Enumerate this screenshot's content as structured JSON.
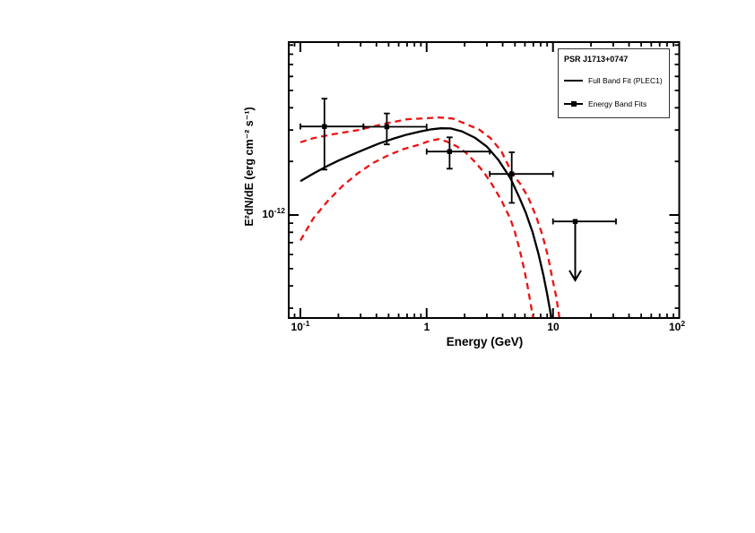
{
  "axes": {
    "x": {
      "title": "Energy (GeV)",
      "scale": "log",
      "unit": "GeV",
      "tick_labels": [
        {
          "base": "10",
          "exp": "-1"
        },
        {
          "base": "1",
          "exp": ""
        },
        {
          "base": "10",
          "exp": ""
        },
        {
          "base": "10",
          "exp": "2"
        }
      ]
    },
    "y": {
      "title": "E²dN/dE (erg cm⁻² s⁻¹)",
      "scale": "log",
      "unit": "erg cm⁻² s⁻¹",
      "tick_labels": [
        {
          "base": "10",
          "exp": "-12"
        }
      ]
    }
  },
  "legend": {
    "title": "PSR J1713+0747",
    "entries": [
      {
        "label": "Full Band Fit (PLEC1)",
        "symbol": "line"
      },
      {
        "label": "Energy Band Fits",
        "symbol": "square-on-line"
      }
    ]
  },
  "colors": {
    "fit_line": "#000000",
    "uncertainty_band": "#ee1111",
    "data_points": "#000000",
    "frame": "#000000"
  },
  "chart_data": {
    "type": "line",
    "source_name": "PSR J1713+0747",
    "xlabel": "Energy (GeV)",
    "ylabel": "E²dN/dE (erg cm⁻² s⁻¹)",
    "xscale": "log",
    "yscale": "log",
    "xlim": [
      0.0809,
      100
    ],
    "ylim": [
      2.64e-13,
      9.35e-12
    ],
    "grid": false,
    "legend_position": "top-right",
    "series": [
      {
        "name": "Full Band Fit (PLEC1)",
        "style": "solid",
        "color": "#000000",
        "points": [
          [
            0.1,
            1.55e-12
          ],
          [
            0.125,
            1.7e-12
          ],
          [
            0.16,
            1.87e-12
          ],
          [
            0.2,
            2.02e-12
          ],
          [
            0.26,
            2.19e-12
          ],
          [
            0.33,
            2.35e-12
          ],
          [
            0.42,
            2.52e-12
          ],
          [
            0.55,
            2.69e-12
          ],
          [
            0.7,
            2.83e-12
          ],
          [
            0.9,
            2.95e-12
          ],
          [
            1.1,
            3.03e-12
          ],
          [
            1.3,
            3.07e-12
          ],
          [
            1.55,
            3.06e-12
          ],
          [
            1.9,
            2.95e-12
          ],
          [
            2.4,
            2.72e-12
          ],
          [
            3.0,
            2.42e-12
          ],
          [
            3.7,
            2.04e-12
          ],
          [
            4.6,
            1.61e-12
          ],
          [
            5.4,
            1.26e-12
          ],
          [
            6.1,
            1.03e-12
          ],
          [
            6.9,
            8e-13
          ],
          [
            7.7,
            6e-13
          ],
          [
            8.4,
            4.6e-13
          ],
          [
            9.0,
            3.6e-13
          ],
          [
            9.5,
            2.9e-13
          ],
          [
            10.0,
            2.3e-13
          ],
          [
            10.3,
            2e-13
          ]
        ]
      },
      {
        "name": "Fit uncertainty upper bound",
        "style": "dashed",
        "color": "#ee1111",
        "points": [
          [
            0.1,
            2.56e-12
          ],
          [
            0.127,
            2.7e-12
          ],
          [
            0.176,
            2.83e-12
          ],
          [
            0.287,
            3e-12
          ],
          [
            0.468,
            3.26e-12
          ],
          [
            0.704,
            3.45e-12
          ],
          [
            0.976,
            3.49e-12
          ],
          [
            1.25,
            3.53e-12
          ],
          [
            1.6,
            3.48e-12
          ],
          [
            2.03,
            3.25e-12
          ],
          [
            2.6,
            3.02e-12
          ],
          [
            3.2,
            2.7e-12
          ],
          [
            3.9,
            2.28e-12
          ],
          [
            4.78,
            1.7e-12
          ],
          [
            5.49,
            1.5e-12
          ],
          [
            6.36,
            1.26e-12
          ],
          [
            7.37,
            9.8e-13
          ],
          [
            8.26,
            7.7e-13
          ],
          [
            9.12,
            5.9e-13
          ],
          [
            9.89,
            4.4e-13
          ],
          [
            10.6,
            3.5e-13
          ],
          [
            11.3,
            2.6e-13
          ],
          [
            11.7,
            2.1e-13
          ]
        ]
      },
      {
        "name": "Fit uncertainty lower bound",
        "style": "dashed",
        "color": "#ee1111",
        "points": [
          [
            0.1,
            7.2e-13
          ],
          [
            0.127,
            9.6e-13
          ],
          [
            0.167,
            1.21e-12
          ],
          [
            0.219,
            1.47e-12
          ],
          [
            0.287,
            1.72e-12
          ],
          [
            0.377,
            1.96e-12
          ],
          [
            0.494,
            2.16e-12
          ],
          [
            0.649,
            2.34e-12
          ],
          [
            0.852,
            2.47e-12
          ],
          [
            1.06,
            2.61e-12
          ],
          [
            1.25,
            2.67e-12
          ],
          [
            1.47,
            2.57e-12
          ],
          [
            1.73,
            2.43e-12
          ],
          [
            2.03,
            2.25e-12
          ],
          [
            2.39,
            2e-12
          ],
          [
            2.82,
            1.75e-12
          ],
          [
            3.32,
            1.47e-12
          ],
          [
            3.9,
            1.21e-12
          ],
          [
            4.6,
            9.5e-13
          ],
          [
            5.0,
            8e-13
          ],
          [
            5.45,
            6.4e-13
          ],
          [
            5.9,
            5e-13
          ],
          [
            6.25,
            4.1e-13
          ],
          [
            6.6,
            3.3e-13
          ],
          [
            7.0,
            2.6e-13
          ],
          [
            7.25,
            2.1e-13
          ]
        ]
      },
      {
        "name": "Energy Band Fits",
        "style": "points",
        "color": "#000000",
        "points": [
          {
            "E": 0.155,
            "E_lo": 0.1,
            "E_hi": 0.316,
            "F": 3.14e-12,
            "F_lo": 1.8e-12,
            "F_hi": 4.5e-12,
            "upper_limit": false
          },
          {
            "E": 0.484,
            "E_lo": 0.316,
            "E_hi": 1.0,
            "F": 3.13e-12,
            "F_lo": 2.49e-12,
            "F_hi": 3.72e-12,
            "upper_limit": false
          },
          {
            "E": 1.52,
            "E_lo": 1.0,
            "E_hi": 3.16,
            "F": 2.27e-12,
            "F_lo": 1.82e-12,
            "F_hi": 2.73e-12,
            "upper_limit": false
          },
          {
            "E": 4.72,
            "E_lo": 3.16,
            "E_hi": 10.0,
            "F": 1.7e-12,
            "F_lo": 1.17e-12,
            "F_hi": 2.25e-12,
            "upper_limit": false
          },
          {
            "E": 15.0,
            "E_lo": 10.0,
            "E_hi": 31.6,
            "F": 9.2e-13,
            "upper_limit": true,
            "arrow_tip_F": 4.3e-13
          }
        ]
      }
    ]
  }
}
